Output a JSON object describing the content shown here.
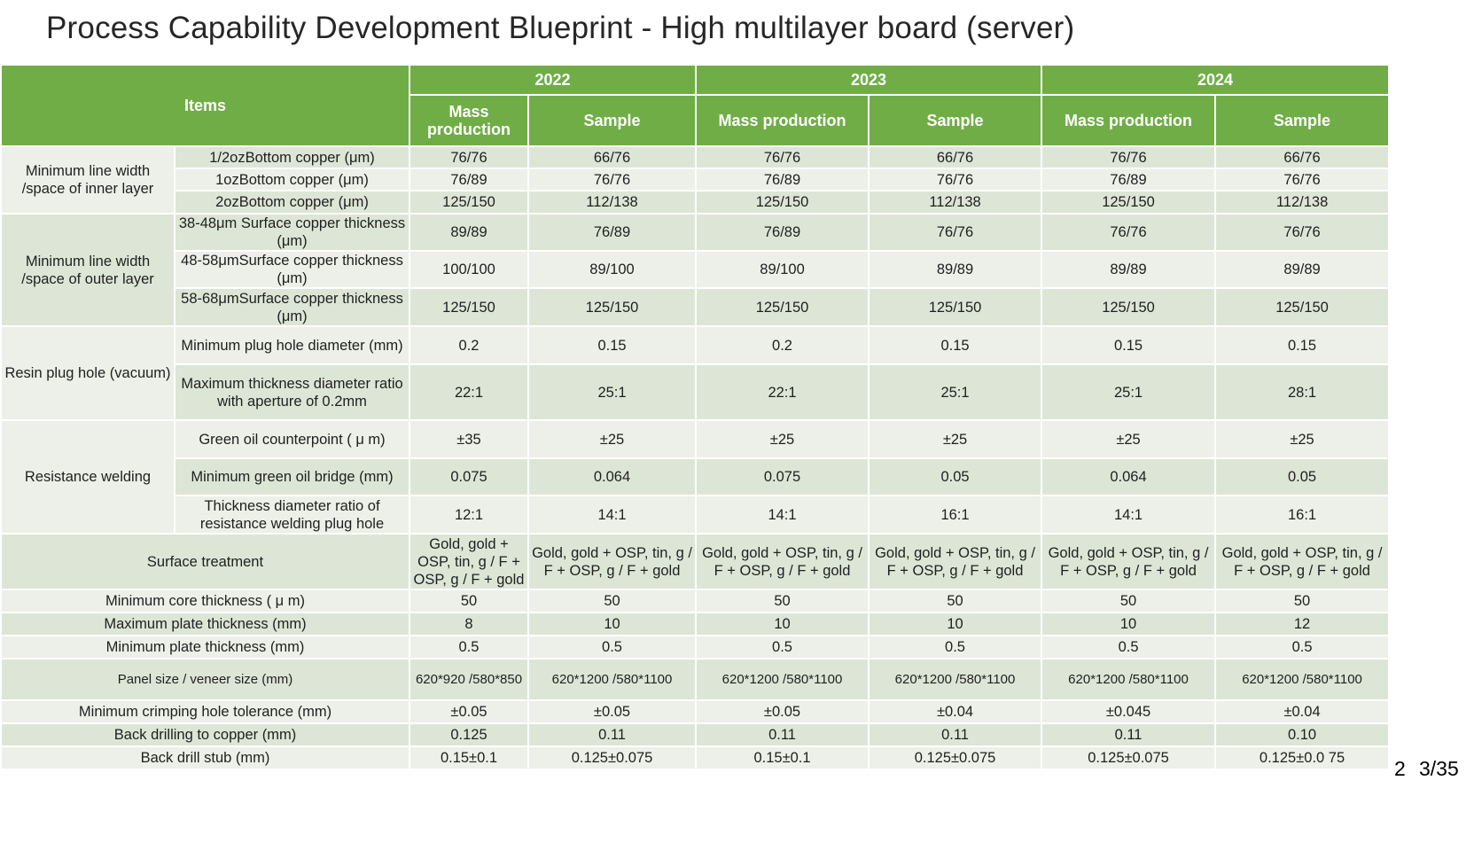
{
  "title": "Process Capability Development Blueprint - High multilayer board (server)",
  "header": {
    "items_label": "Items",
    "years": [
      "2022",
      "2023",
      "2024"
    ],
    "stages": [
      "Mass production",
      "Sample",
      "Mass production",
      "Sample",
      "Mass production",
      "Sample"
    ]
  },
  "groups": {
    "inner": "Minimum line width /space of inner layer",
    "outer": "Minimum line width /space of outer layer",
    "resin": "Resin plug hole (vacuum)",
    "resist": "Resistance welding"
  },
  "rows": [
    {
      "label": "1/2ozBottom copper (μm)",
      "values": [
        "76/76",
        "66/76",
        "76/76",
        "66/76",
        "76/76",
        "66/76"
      ]
    },
    {
      "label": "1ozBottom copper (μm)",
      "values": [
        "76/89",
        "76/76",
        "76/89",
        "76/76",
        "76/89",
        "76/76"
      ]
    },
    {
      "label": "2ozBottom copper (μm)",
      "values": [
        "125/150",
        "112/138",
        "125/150",
        "112/138",
        "125/150",
        "112/138"
      ]
    },
    {
      "label": "38-48μm Surface copper thickness (μm)",
      "values": [
        "89/89",
        "76/89",
        "76/89",
        "76/76",
        "76/76",
        "76/76"
      ]
    },
    {
      "label": "48-58μmSurface copper thickness (μm)",
      "values": [
        "100/100",
        "89/100",
        "89/100",
        "89/89",
        "89/89",
        "89/89"
      ]
    },
    {
      "label": "58-68μmSurface copper thickness (μm)",
      "values": [
        "125/150",
        "125/150",
        "125/150",
        "125/150",
        "125/150",
        "125/150"
      ]
    },
    {
      "label": "Minimum plug hole diameter (mm)",
      "values": [
        "0.2",
        "0.15",
        "0.2",
        "0.15",
        "0.15",
        "0.15"
      ]
    },
    {
      "label": "Maximum thickness diameter ratio with aperture of 0.2mm",
      "values": [
        "22:1",
        "25:1",
        "22:1",
        "25:1",
        "25:1",
        "28:1"
      ]
    },
    {
      "label": "Green oil counterpoint ( μ m)",
      "values": [
        "±35",
        "±25",
        "±25",
        "±25",
        "±25",
        "±25"
      ]
    },
    {
      "label": "Minimum green oil bridge (mm)",
      "values": [
        "0.075",
        "0.064",
        "0.075",
        "0.05",
        "0.064",
        "0.05"
      ]
    },
    {
      "label": "Thickness diameter ratio of resistance welding plug hole",
      "values": [
        "12:1",
        "14:1",
        "14:1",
        "16:1",
        "14:1",
        "16:1"
      ]
    },
    {
      "label": "Surface treatment",
      "values": [
        "Gold, gold + OSP, tin, g / F + OSP, g / F + gold",
        "Gold, gold + OSP, tin, g / F + OSP, g / F + gold",
        "Gold, gold + OSP, tin, g / F + OSP, g / F + gold",
        "Gold, gold + OSP, tin, g / F + OSP, g / F + gold",
        "Gold, gold + OSP, tin, g / F + OSP, g / F + gold",
        "Gold, gold + OSP, tin, g / F + OSP, g / F + gold"
      ]
    },
    {
      "label": "Minimum core thickness ( μ m)",
      "values": [
        "50",
        "50",
        "50",
        "50",
        "50",
        "50"
      ]
    },
    {
      "label": "Maximum plate thickness (mm)",
      "values": [
        "8",
        "10",
        "10",
        "10",
        "10",
        "12"
      ]
    },
    {
      "label": "Minimum plate thickness (mm)",
      "values": [
        "0.5",
        "0.5",
        "0.5",
        "0.5",
        "0.5",
        "0.5"
      ]
    },
    {
      "label": "Panel size / veneer size (mm)",
      "values": [
        "620*920 /580*850",
        "620*1200 /580*1100",
        "620*1200 /580*1100",
        "620*1200 /580*1100",
        "620*1200 /580*1100",
        "620*1200 /580*1100"
      ]
    },
    {
      "label": "Minimum crimping hole tolerance (mm)",
      "values": [
        "±0.05",
        "±0.05",
        "±0.05",
        "±0.04",
        "±0.045",
        "±0.04"
      ]
    },
    {
      "label": "Back drilling to copper (mm)",
      "values": [
        "0.125",
        "0.11",
        "0.11",
        "0.11",
        "0.11",
        "0.10"
      ]
    },
    {
      "label": "Back drill stub (mm)",
      "values": [
        "0.15±0.1",
        "0.125±0.075",
        "0.15±0.1",
        "0.125±0.075",
        "0.125±0.075",
        "0.125±0.0 75"
      ]
    }
  ],
  "page": {
    "current": "2",
    "total": "3/35"
  }
}
